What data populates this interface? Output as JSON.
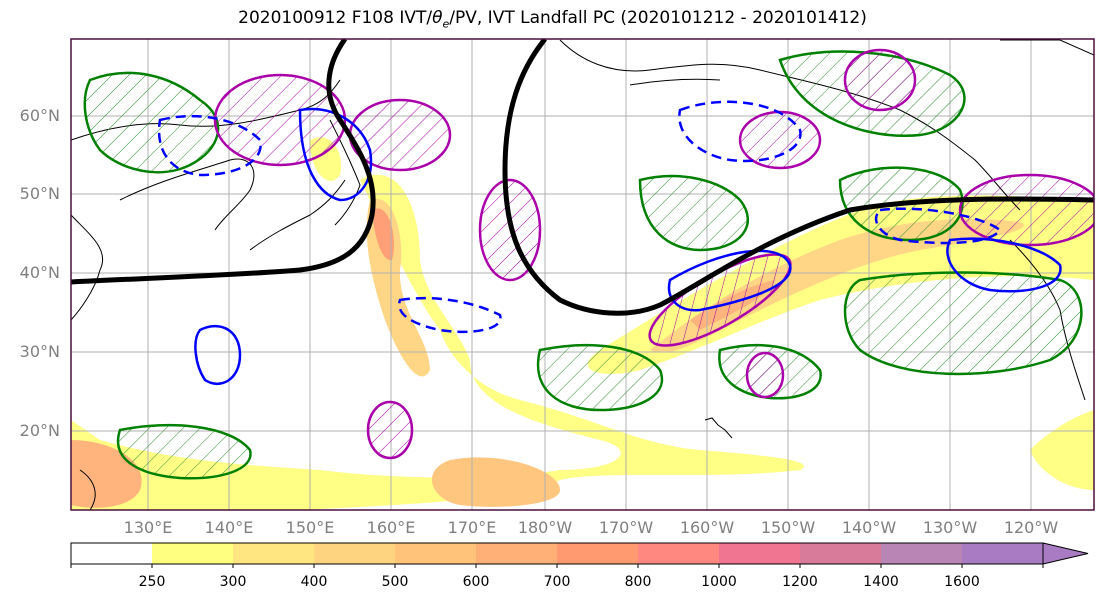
{
  "title_text": "2020100912 F108 IVT/",
  "title_theta": "θ",
  "title_sub": "e",
  "title_rest": "/PV, IVT Landfall PC (2020101212 - 2020101412)",
  "lat_labels": [
    "60°N",
    "50°N",
    "40°N",
    "30°N",
    "20°N"
  ],
  "lon_labels": [
    "130°E",
    "140°E",
    "150°E",
    "160°E",
    "170°E",
    "180°W",
    "170°W",
    "160°W",
    "150°W",
    "140°W",
    "130°W",
    "120°W"
  ],
  "colorbar": {
    "ticks": [
      "250",
      "300",
      "400",
      "500",
      "600",
      "700",
      "800",
      "1000",
      "1200",
      "1400",
      "1600"
    ],
    "colors": [
      "#ffffff",
      "#ffff80",
      "#ffe680",
      "#ffd480",
      "#ffc47a",
      "#ffb077",
      "#ff9a70",
      "#ff8880",
      "#f07590",
      "#d87b9a",
      "#b885b5",
      "#a87bc3"
    ]
  },
  "contour_colors": {
    "ivt_landfall_pos": "#0000ff",
    "pv_contour": "#aa00aa",
    "theta_e_contour": "#008000",
    "jet_line": "#000000"
  }
}
